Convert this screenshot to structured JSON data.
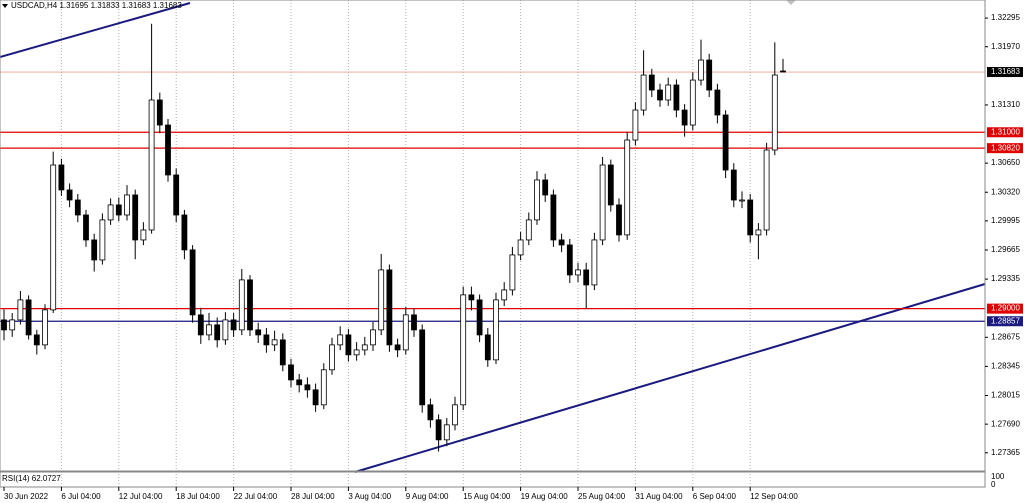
{
  "chart_data": {
    "type": "candlestick",
    "title": "USDCAD,H4  1.31695 1.31833 1.31683 1.31683",
    "categories": [
      "30 Jun 2022",
      null,
      null,
      null,
      null,
      null,
      null,
      "6 Jul 04:00",
      null,
      null,
      null,
      null,
      null,
      null,
      "12 Jul 04:00",
      null,
      null,
      null,
      null,
      null,
      null,
      "18 Jul 04:00",
      null,
      null,
      null,
      null,
      null,
      null,
      "22 Jul 04:00",
      null,
      null,
      null,
      null,
      null,
      null,
      "28 Jul 04:00",
      null,
      null,
      null,
      null,
      null,
      null,
      "3 Aug 04:00",
      null,
      null,
      null,
      null,
      null,
      null,
      "9 Aug 04:00",
      null,
      null,
      null,
      null,
      null,
      null,
      "15 Aug 04:00",
      null,
      null,
      null,
      null,
      null,
      null,
      "19 Aug 04:00",
      null,
      null,
      null,
      null,
      null,
      null,
      "25 Aug 04:00",
      null,
      null,
      null,
      null,
      null,
      null,
      "31 Aug 04:00",
      null,
      null,
      null,
      null,
      null,
      null,
      "6 Sep 04:00",
      null,
      null,
      null,
      null,
      null,
      null,
      "12 Sep 04:00",
      null,
      null,
      null,
      null
    ],
    "open": [
      1.28872,
      1.28759,
      1.28872,
      1.29099,
      1.28702,
      1.28589,
      1.28986,
      1.30629,
      1.30346,
      1.30232,
      1.30062,
      1.29779,
      1.29552,
      1.30006,
      1.30176,
      1.30062,
      1.30289,
      1.29779,
      1.29892,
      1.31366,
      1.31082,
      1.30516,
      1.30062,
      1.29666,
      1.28929,
      1.28702,
      1.28816,
      1.28646,
      1.28872,
      1.28759,
      1.29326,
      1.28759,
      1.28702,
      1.28589,
      1.28646,
      1.28362,
      1.28192,
      1.28136,
      1.28079,
      1.27909,
      1.28306,
      1.28589,
      1.28702,
      1.28476,
      1.28532,
      1.28589,
      1.28759,
      1.29439,
      1.28589,
      1.28532,
      1.28929,
      1.28759,
      1.27909,
      1.27739,
      1.27512,
      1.27682,
      1.27909,
      1.29156,
      1.29099,
      1.28702,
      1.28419,
      1.29099,
      1.29212,
      1.29609,
      1.29779,
      1.30006,
      1.30459,
      1.30289,
      1.29779,
      1.29722,
      1.29382,
      1.29439,
      1.29269,
      1.29779,
      1.30629,
      1.30176,
      1.29836,
      1.30912,
      1.31252,
      1.31649,
      1.31479,
      1.31366,
      1.31536,
      1.31252,
      1.31082,
      1.31592,
      1.31819,
      1.31479,
      1.31196,
      1.30572,
      1.30232,
      1.30232,
      1.29836,
      1.29892,
      1.30799,
      1.31695
    ],
    "high": [
      1.2899,
      1.2895,
      1.292,
      1.2915,
      1.2876,
      1.2905,
      1.3078,
      1.307,
      1.3042,
      1.303,
      1.3012,
      1.2985,
      1.3008,
      1.3025,
      1.3026,
      1.304,
      1.3035,
      1.2998,
      1.3223,
      1.3145,
      1.3115,
      1.3059,
      1.3012,
      1.2972,
      1.2901,
      1.2895,
      1.289,
      1.2896,
      1.2895,
      1.2945,
      1.2938,
      1.2884,
      1.2878,
      1.2875,
      1.2872,
      1.2843,
      1.2826,
      1.2822,
      1.2815,
      1.2838,
      1.2867,
      1.288,
      1.2877,
      1.2862,
      1.2868,
      1.2885,
      1.2962,
      1.295,
      1.2866,
      1.2902,
      1.29,
      1.2882,
      1.2798,
      1.278,
      1.2776,
      1.28,
      1.2925,
      1.2925,
      1.2916,
      1.2878,
      1.2918,
      1.293,
      1.297,
      1.2987,
      1.3009,
      1.3056,
      1.3053,
      1.3035,
      1.2985,
      1.2979,
      1.2952,
      1.2952,
      1.2986,
      1.3072,
      1.3069,
      1.3025,
      1.31,
      1.3134,
      1.3193,
      1.3172,
      1.3155,
      1.3162,
      1.316,
      1.3132,
      1.3168,
      1.3205,
      1.3189,
      1.3155,
      1.3125,
      1.3065,
      1.3033,
      1.303,
      1.2997,
      1.3088,
      1.3202,
      1.31833
    ],
    "low": [
      1.2864,
      1.2868,
      1.2882,
      1.2865,
      1.2848,
      1.2854,
      1.2895,
      1.3028,
      1.3015,
      1.2998,
      1.297,
      1.2942,
      1.295,
      1.2995,
      1.2999,
      1.3,
      1.2956,
      1.2972,
      1.2985,
      1.3099,
      1.3044,
      1.2998,
      1.2956,
      1.2884,
      1.286,
      1.2864,
      1.2856,
      1.2859,
      1.2868,
      1.287,
      1.2869,
      1.2861,
      1.285,
      1.2852,
      1.2829,
      1.2811,
      1.2805,
      1.2799,
      1.2783,
      1.2786,
      1.2825,
      1.2853,
      1.284,
      1.2841,
      1.2847,
      1.2852,
      1.287,
      1.2851,
      1.2845,
      1.2848,
      1.2868,
      1.2782,
      1.2765,
      1.2738,
      1.2744,
      1.2762,
      1.2785,
      1.2898,
      1.2862,
      1.2834,
      1.2837,
      1.2903,
      1.2915,
      1.2955,
      1.2972,
      1.2995,
      1.3021,
      1.297,
      1.2964,
      1.2929,
      1.293,
      1.29,
      1.2921,
      1.2972,
      1.301,
      1.2976,
      1.2978,
      1.3085,
      1.3119,
      1.314,
      1.3129,
      1.313,
      1.3117,
      1.3095,
      1.3102,
      1.3153,
      1.314,
      1.311,
      1.3048,
      1.3015,
      1.3014,
      1.2975,
      1.2956,
      1.2983,
      1.3074,
      1.31683
    ],
    "close": [
      1.28759,
      1.28872,
      1.29099,
      1.28702,
      1.28589,
      1.28986,
      1.30629,
      1.30346,
      1.30232,
      1.30062,
      1.29779,
      1.29552,
      1.30006,
      1.30176,
      1.30062,
      1.30289,
      1.29779,
      1.29892,
      1.31366,
      1.31082,
      1.30516,
      1.30062,
      1.29666,
      1.28929,
      1.28702,
      1.28816,
      1.28646,
      1.28872,
      1.28759,
      1.29326,
      1.28759,
      1.28702,
      1.28589,
      1.28646,
      1.28362,
      1.28192,
      1.28136,
      1.28079,
      1.27909,
      1.28306,
      1.28589,
      1.28702,
      1.28476,
      1.28532,
      1.28589,
      1.28759,
      1.29439,
      1.28589,
      1.28532,
      1.28929,
      1.28759,
      1.27909,
      1.27739,
      1.27512,
      1.27682,
      1.27909,
      1.29156,
      1.29099,
      1.28702,
      1.28419,
      1.29099,
      1.29212,
      1.29609,
      1.29779,
      1.30006,
      1.30459,
      1.30289,
      1.29779,
      1.29722,
      1.29382,
      1.29439,
      1.29269,
      1.29779,
      1.30629,
      1.30176,
      1.29836,
      1.30912,
      1.31252,
      1.31649,
      1.31479,
      1.31366,
      1.31536,
      1.31252,
      1.31082,
      1.31592,
      1.31819,
      1.31479,
      1.31196,
      1.30572,
      1.30232,
      1.30232,
      1.29836,
      1.29892,
      1.30799,
      1.31649,
      1.31683
    ],
    "ylim": [
      1.2717,
      1.325
    ],
    "yticks": [
      1.32295,
      {
        "value": 1.3197,
        "label": "1.31970"
      },
      {
        "value": 1.3131,
        "label": "1.31310"
      },
      {
        "value": 1.3065,
        "label": "1.30650"
      },
      {
        "value": 1.3032,
        "label": "1.30320"
      },
      1.29995,
      1.29665,
      1.29335,
      1.28675,
      1.28345,
      1.28015,
      {
        "value": 1.2769,
        "label": "1.27690"
      },
      1.27365
    ],
    "levels": [
      {
        "value": 1.31683,
        "label": "1.31683",
        "color": "#000000",
        "line_color": "#f0a090"
      },
      {
        "value": 1.31,
        "label": "1.31000",
        "color": "#e00000",
        "line_color": "#e00000"
      },
      {
        "value": 1.3082,
        "label": "1.30820",
        "color": "#e00000",
        "line_color": "#e00000"
      },
      {
        "value": 1.29,
        "label": "1.29000",
        "color": "#e00000",
        "line_color": "#e00000"
      },
      {
        "value": 1.28857,
        "label": "1.28857",
        "color": "#1a1a80",
        "line_color": "#1a1a80"
      }
    ],
    "grid": "vertical",
    "rsi_label": "RSI(14) 62.0727",
    "rsi_yticks": [
      100,
      0
    ]
  }
}
